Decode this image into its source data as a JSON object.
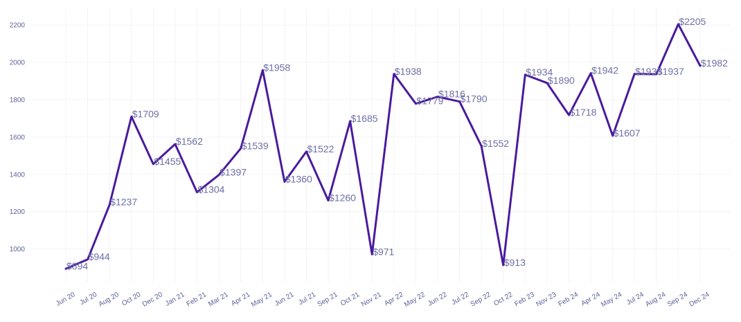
{
  "chart_data": {
    "type": "line",
    "title": "",
    "xlabel": "",
    "ylabel": "",
    "categories": [
      "Jun 20",
      "Jul 20",
      "Aug 20",
      "Oct 20",
      "Dec 20",
      "Jan 21",
      "Feb 21",
      "Mar 21",
      "Apr 21",
      "May 21",
      "Jun 21",
      "Jul 21",
      "Sep 21",
      "Oct 21",
      "Nov 21",
      "Apr 22",
      "May 22",
      "Jun 22",
      "Jul 22",
      "Sep 22",
      "Oct 22",
      "Feb 23",
      "Nov 23",
      "Feb 24",
      "Apr 24",
      "May 24",
      "Jul 24",
      "Aug 24",
      "Sep 24",
      "Dec 24"
    ],
    "values": [
      894,
      944,
      1237,
      1709,
      1455,
      1562,
      1304,
      1397,
      1539,
      1958,
      1360,
      1522,
      1260,
      1685,
      971,
      1938,
      1779,
      1816,
      1790,
      1552,
      913,
      1934,
      1890,
      1718,
      1942,
      1607,
      1938,
      1937,
      2205,
      1982
    ],
    "data_labels": [
      "$894",
      "$944",
      "$1237",
      "$1709",
      "$1455",
      "$1562",
      "$1304",
      "$1397",
      "$1539",
      "$1958",
      "$1360",
      "$1522",
      "$1260",
      "$1685",
      "$971",
      "$1938",
      "$1779",
      "$1816",
      "$1790",
      "$1552",
      "$913",
      "$1934",
      "$1890",
      "$1718",
      "$1942",
      "$1607",
      "$1938",
      "$1937",
      "$2205",
      "$1982"
    ],
    "y_ticks": [
      1000,
      1200,
      1400,
      1600,
      1800,
      2000,
      2200
    ],
    "y_tick_labels": [
      "1000",
      "1200",
      "1400",
      "1600",
      "1800",
      "2000",
      "2200"
    ],
    "ylim": [
      820,
      2290
    ],
    "grid": true,
    "legend": "none",
    "line_color": "#4a1a9e"
  }
}
